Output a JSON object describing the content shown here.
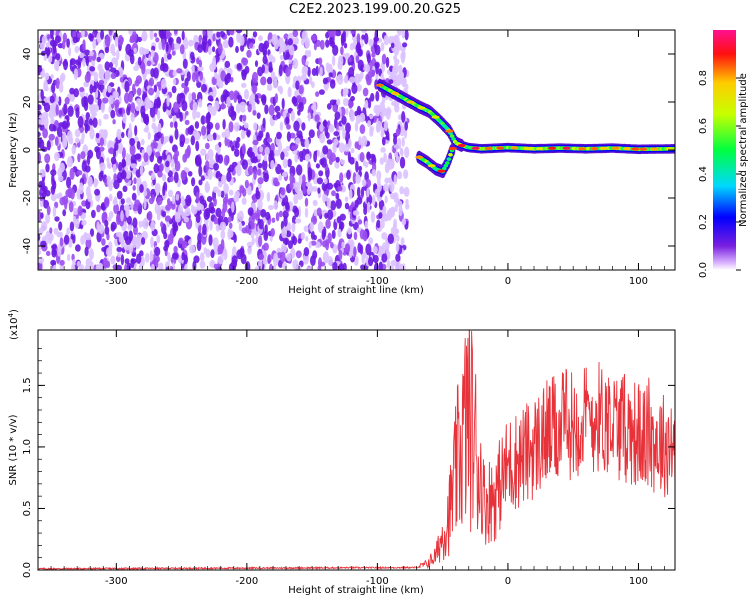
{
  "title": "C2E2.2023.199.00.20.G25",
  "chart_data": [
    {
      "type": "heatmap",
      "xlabel": "Height of straight line (km)",
      "ylabel": "Frequency (Hz)",
      "xlim": [
        -360,
        128
      ],
      "ylim": [
        -50,
        50
      ],
      "xticks": [
        -300,
        -200,
        -100,
        0,
        100
      ],
      "yticks": [
        -40,
        -20,
        0,
        20,
        40
      ],
      "colorbar": {
        "label": "Normalized spectral amplitude",
        "range": [
          0,
          1
        ],
        "ticks": [
          "0.0",
          "0.2",
          "0.4",
          "0.6",
          "0.8"
        ]
      },
      "noise_region_x": [
        -360,
        -85
      ],
      "signal_track": [
        {
          "x": -98,
          "y": 27
        },
        {
          "x": -88,
          "y": 24
        },
        {
          "x": -78,
          "y": 21
        },
        {
          "x": -68,
          "y": 18
        },
        {
          "x": -60,
          "y": 16
        },
        {
          "x": -52,
          "y": 12
        },
        {
          "x": -45,
          "y": 8
        },
        {
          "x": -40,
          "y": 3
        },
        {
          "x": -36,
          "y": 2
        },
        {
          "x": -30,
          "y": 1
        },
        {
          "x": -20,
          "y": 0.5
        },
        {
          "x": 0,
          "y": 1
        },
        {
          "x": 20,
          "y": 0.5
        },
        {
          "x": 40,
          "y": 0.8
        },
        {
          "x": 60,
          "y": 0.5
        },
        {
          "x": 80,
          "y": 0.8
        },
        {
          "x": 100,
          "y": 0.3
        },
        {
          "x": 128,
          "y": 0.5
        }
      ],
      "lower_branch": [
        {
          "x": -68,
          "y": -3
        },
        {
          "x": -62,
          "y": -5
        },
        {
          "x": -55,
          "y": -8
        },
        {
          "x": -50,
          "y": -9
        },
        {
          "x": -46,
          "y": -5
        },
        {
          "x": -42,
          "y": 1
        }
      ]
    },
    {
      "type": "line",
      "xlabel": "Height of straight line (km)",
      "ylabel": "SNR (10 * v/v)",
      "y_multiplier": "(x10",
      "y_multiplier_exp": "4",
      "y_multiplier_close": ")",
      "xlim": [
        -360,
        128
      ],
      "ylim": [
        0,
        1.95
      ],
      "xticks": [
        -300,
        -200,
        -100,
        0,
        100
      ],
      "yticks": [
        "0.0",
        "0.5",
        "1.0",
        "1.5"
      ],
      "line_color": "#e8323a",
      "series": [
        {
          "envelope": [
            {
              "x": -360,
              "y": 0.01
            },
            {
              "x": -70,
              "y": 0.02
            },
            {
              "x": -62,
              "y": 0.05
            },
            {
              "x": -55,
              "y": 0.12
            },
            {
              "x": -45,
              "y": 0.45
            },
            {
              "x": -38,
              "y": 0.9
            },
            {
              "x": -30,
              "y": 1.3
            },
            {
              "x": -24,
              "y": 0.95
            },
            {
              "x": -18,
              "y": 0.55
            },
            {
              "x": -10,
              "y": 0.6
            },
            {
              "x": 0,
              "y": 0.85
            },
            {
              "x": 15,
              "y": 0.95
            },
            {
              "x": 30,
              "y": 1.1
            },
            {
              "x": 50,
              "y": 1.2
            },
            {
              "x": 70,
              "y": 1.25
            },
            {
              "x": 90,
              "y": 1.15
            },
            {
              "x": 110,
              "y": 1.05
            },
            {
              "x": 128,
              "y": 1.0
            }
          ]
        }
      ]
    }
  ]
}
